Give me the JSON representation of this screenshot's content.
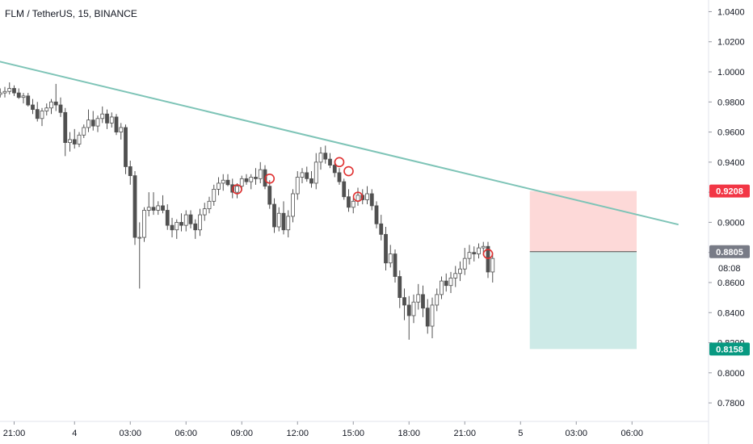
{
  "chart_data": {
    "type": "candlestick",
    "title": "FLM / TetherUS, 15, BINANCE",
    "y_axis": {
      "position": "right",
      "ylim": [
        0.772,
        1.044
      ],
      "ticks": [
        "1.0400",
        "1.0200",
        "1.0000",
        "0.9800",
        "0.9600",
        "0.9400",
        "0.9200",
        "0.9000",
        "0.8800",
        "0.8600",
        "0.8400",
        "0.8200",
        "0.8000",
        "0.7800"
      ],
      "tick_values": [
        1.04,
        1.02,
        1.0,
        0.98,
        0.96,
        0.94,
        0.92,
        0.9,
        0.88,
        0.86,
        0.84,
        0.82,
        0.8,
        0.78
      ]
    },
    "x_axis": {
      "ticks": [
        {
          "label": "21:00",
          "index": 4
        },
        {
          "label": "4",
          "index": 17
        },
        {
          "label": "03:00",
          "index": 29
        },
        {
          "label": "06:00",
          "index": 41
        },
        {
          "label": "09:00",
          "index": 53
        },
        {
          "label": "12:00",
          "index": 65
        },
        {
          "label": "15:00",
          "index": 77
        },
        {
          "label": "18:00",
          "index": 89
        },
        {
          "label": "21:00",
          "index": 101
        },
        {
          "label": "5",
          "index": 113
        },
        {
          "label": "03:00",
          "index": 125
        },
        {
          "label": "06:00",
          "index": 137
        }
      ]
    },
    "candles": [
      [
        0.984,
        0.987,
        0.981,
        0.985
      ],
      [
        0.985,
        0.989,
        0.983,
        0.986
      ],
      [
        0.986,
        0.99,
        0.983,
        0.987
      ],
      [
        0.987,
        0.993,
        0.985,
        0.989
      ],
      [
        0.989,
        0.991,
        0.984,
        0.986
      ],
      [
        0.986,
        0.989,
        0.982,
        0.983
      ],
      [
        0.983,
        0.986,
        0.979,
        0.984
      ],
      [
        0.984,
        0.986,
        0.977,
        0.978
      ],
      [
        0.978,
        0.982,
        0.972,
        0.975
      ],
      [
        0.975,
        0.98,
        0.967,
        0.969
      ],
      [
        0.969,
        0.976,
        0.964,
        0.974
      ],
      [
        0.974,
        0.979,
        0.971,
        0.976
      ],
      [
        0.976,
        0.982,
        0.972,
        0.98
      ],
      [
        0.98,
        0.992,
        0.974,
        0.978
      ],
      [
        0.978,
        0.983,
        0.97,
        0.973
      ],
      [
        0.973,
        0.976,
        0.944,
        0.953
      ],
      [
        0.953,
        0.96,
        0.947,
        0.955
      ],
      [
        0.955,
        0.962,
        0.949,
        0.952
      ],
      [
        0.952,
        0.96,
        0.95,
        0.958
      ],
      [
        0.958,
        0.965,
        0.956,
        0.963
      ],
      [
        0.963,
        0.975,
        0.96,
        0.968
      ],
      [
        0.968,
        0.974,
        0.961,
        0.964
      ],
      [
        0.964,
        0.971,
        0.96,
        0.969
      ],
      [
        0.969,
        0.977,
        0.966,
        0.972
      ],
      [
        0.972,
        0.975,
        0.962,
        0.966
      ],
      [
        0.966,
        0.973,
        0.963,
        0.97
      ],
      [
        0.97,
        0.972,
        0.958,
        0.96
      ],
      [
        0.96,
        0.966,
        0.955,
        0.963
      ],
      [
        0.963,
        0.965,
        0.932,
        0.937
      ],
      [
        0.937,
        0.941,
        0.925,
        0.931
      ],
      [
        0.931,
        0.934,
        0.885,
        0.89
      ],
      [
        0.89,
        0.9,
        0.856,
        0.89
      ],
      [
        0.89,
        0.91,
        0.887,
        0.908
      ],
      [
        0.908,
        0.92,
        0.904,
        0.91
      ],
      [
        0.91,
        0.92,
        0.905,
        0.908
      ],
      [
        0.908,
        0.914,
        0.905,
        0.911
      ],
      [
        0.911,
        0.918,
        0.906,
        0.908
      ],
      [
        0.908,
        0.912,
        0.895,
        0.898
      ],
      [
        0.898,
        0.903,
        0.89,
        0.895
      ],
      [
        0.895,
        0.902,
        0.889,
        0.9
      ],
      [
        0.9,
        0.906,
        0.894,
        0.898
      ],
      [
        0.898,
        0.908,
        0.894,
        0.905
      ],
      [
        0.905,
        0.908,
        0.896,
        0.899
      ],
      [
        0.899,
        0.902,
        0.889,
        0.895
      ],
      [
        0.895,
        0.909,
        0.891,
        0.905
      ],
      [
        0.905,
        0.913,
        0.901,
        0.909
      ],
      [
        0.909,
        0.917,
        0.906,
        0.914
      ],
      [
        0.914,
        0.925,
        0.911,
        0.922
      ],
      [
        0.922,
        0.93,
        0.918,
        0.926
      ],
      [
        0.926,
        0.932,
        0.921,
        0.928
      ],
      [
        0.928,
        0.932,
        0.924,
        0.925
      ],
      [
        0.925,
        0.929,
        0.916,
        0.92
      ],
      [
        0.92,
        0.926,
        0.916,
        0.924
      ],
      [
        0.924,
        0.931,
        0.921,
        0.929
      ],
      [
        0.929,
        0.932,
        0.925,
        0.927
      ],
      [
        0.927,
        0.932,
        0.922,
        0.93
      ],
      [
        0.93,
        0.936,
        0.925,
        0.929
      ],
      [
        0.929,
        0.94,
        0.926,
        0.935
      ],
      [
        0.935,
        0.938,
        0.922,
        0.924
      ],
      [
        0.924,
        0.928,
        0.909,
        0.912
      ],
      [
        0.912,
        0.916,
        0.893,
        0.897
      ],
      [
        0.897,
        0.91,
        0.894,
        0.906
      ],
      [
        0.906,
        0.914,
        0.892,
        0.895
      ],
      [
        0.895,
        0.908,
        0.89,
        0.904
      ],
      [
        0.904,
        0.922,
        0.9,
        0.919
      ],
      [
        0.919,
        0.934,
        0.915,
        0.93
      ],
      [
        0.93,
        0.936,
        0.926,
        0.933
      ],
      [
        0.933,
        0.937,
        0.927,
        0.929
      ],
      [
        0.929,
        0.934,
        0.923,
        0.926
      ],
      [
        0.926,
        0.946,
        0.922,
        0.94
      ],
      [
        0.94,
        0.95,
        0.935,
        0.946
      ],
      [
        0.946,
        0.951,
        0.939,
        0.942
      ],
      [
        0.942,
        0.946,
        0.936,
        0.938
      ],
      [
        0.938,
        0.941,
        0.93,
        0.933
      ],
      [
        0.933,
        0.936,
        0.925,
        0.927
      ],
      [
        0.927,
        0.929,
        0.915,
        0.917
      ],
      [
        0.917,
        0.922,
        0.907,
        0.91
      ],
      [
        0.91,
        0.916,
        0.906,
        0.914
      ],
      [
        0.914,
        0.923,
        0.911,
        0.918
      ],
      [
        0.918,
        0.922,
        0.912,
        0.915
      ],
      [
        0.915,
        0.924,
        0.912,
        0.919
      ],
      [
        0.919,
        0.922,
        0.908,
        0.911
      ],
      [
        0.911,
        0.914,
        0.896,
        0.899
      ],
      [
        0.899,
        0.905,
        0.888,
        0.892
      ],
      [
        0.892,
        0.897,
        0.868,
        0.873
      ],
      [
        0.873,
        0.885,
        0.87,
        0.879
      ],
      [
        0.879,
        0.882,
        0.86,
        0.864
      ],
      [
        0.864,
        0.868,
        0.843,
        0.85
      ],
      [
        0.85,
        0.856,
        0.835,
        0.845
      ],
      [
        0.845,
        0.851,
        0.822,
        0.838
      ],
      [
        0.838,
        0.852,
        0.833,
        0.847
      ],
      [
        0.847,
        0.859,
        0.842,
        0.852
      ],
      [
        0.852,
        0.858,
        0.837,
        0.843
      ],
      [
        0.843,
        0.849,
        0.826,
        0.831
      ],
      [
        0.831,
        0.85,
        0.823,
        0.845
      ],
      [
        0.845,
        0.856,
        0.841,
        0.852
      ],
      [
        0.852,
        0.864,
        0.849,
        0.861
      ],
      [
        0.861,
        0.866,
        0.854,
        0.858
      ],
      [
        0.858,
        0.867,
        0.853,
        0.863
      ],
      [
        0.863,
        0.871,
        0.857,
        0.866
      ],
      [
        0.866,
        0.874,
        0.861,
        0.869
      ],
      [
        0.869,
        0.883,
        0.865,
        0.876
      ],
      [
        0.876,
        0.885,
        0.872,
        0.88
      ],
      [
        0.88,
        0.884,
        0.874,
        0.879
      ],
      [
        0.879,
        0.886,
        0.876,
        0.883
      ],
      [
        0.883,
        0.887,
        0.878,
        0.884
      ],
      [
        0.884,
        0.887,
        0.863,
        0.867
      ],
      [
        0.867,
        0.88,
        0.86,
        0.876
      ]
    ],
    "trendline": {
      "from": [
        0,
        1.0075
      ],
      "to": [
        147,
        0.8985
      ],
      "color": "#7ec4b7"
    },
    "markers": [
      {
        "index": 52,
        "price": 0.922
      },
      {
        "index": 59,
        "price": 0.929
      },
      {
        "index": 74,
        "price": 0.94
      },
      {
        "index": 76,
        "price": 0.934
      },
      {
        "index": 78,
        "price": 0.917
      },
      {
        "index": 106,
        "price": 0.879
      }
    ],
    "position": {
      "type": "short",
      "start_index": 115,
      "end_index": 138,
      "entry": 0.8805,
      "stop": 0.9208,
      "target": 0.8158,
      "stop_fill": "#fdd9d8",
      "target_fill": "#cdeae7"
    },
    "price_labels": [
      {
        "text": "0.9208",
        "value": 0.9208,
        "color": "#f23645"
      },
      {
        "text": "0.8805",
        "value": 0.8805,
        "color": "#787b86",
        "countdown": "08:08"
      },
      {
        "text": "0.8158",
        "value": 0.8158,
        "color": "#089981"
      }
    ],
    "colors": {
      "up": "#ffffff",
      "down": "#505050",
      "wick": "#505050",
      "marker": "#e03030",
      "axis": "#e0e3eb"
    }
  }
}
